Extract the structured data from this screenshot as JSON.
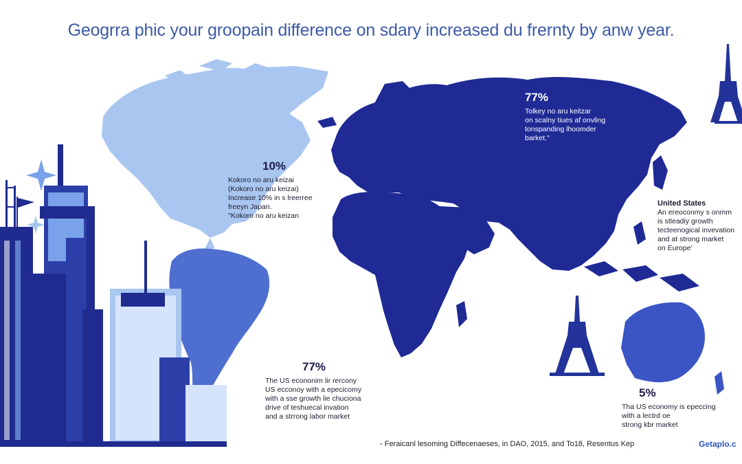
{
  "title": "Geogrra phic your groopain difference on sdary increased du frernty by anw year.",
  "callouts": {
    "north_america": {
      "value": "10%",
      "lines": [
        "Kokoro no aru keizai",
        "(Kokoro no aru keizai)",
        "Increase 10% in s lreerree",
        "freeyn Japan.",
        "\"Kokoro no aru keizan"
      ]
    },
    "russia": {
      "value": "77%",
      "lines": [
        "Tolkey no aru keitzar",
        "on scalny tiues af onvling",
        "tonspanding lhoomder",
        "barket.\""
      ]
    },
    "united_states": {
      "heading": "United States",
      "lines": [
        "An ereoconmy s onmm",
        "is stleadiy growth",
        "tecteenogical invevation",
        "and at strong market",
        "on Europe'"
      ]
    },
    "south": {
      "value": "77%",
      "lines": [
        "The US econonim lir rercony",
        "US ecconoy with a epecicomy",
        "with a sse growth lie chuciona",
        "drive of teshuecal invation",
        "and a strrong labor market"
      ]
    },
    "australia": {
      "value": "5%",
      "lines": [
        "Tha US economy is epeccing",
        "with a lectrd oe",
        "strong kbr market"
      ]
    }
  },
  "footer": "- Feraicanl lesoming Diffecenaeses, in DAO, 2015, and To18, Resentus Kep",
  "brand": "Getaplo.c",
  "colors": {
    "title": "#3d5aa8",
    "north_america": "#a9c6f0",
    "south_america": "#4e6fd0",
    "eurasia_africa": "#1f2a95",
    "australia": "#3b55c5",
    "city_dark": "#1f2b8f",
    "city_light": "#7aa2ea"
  }
}
